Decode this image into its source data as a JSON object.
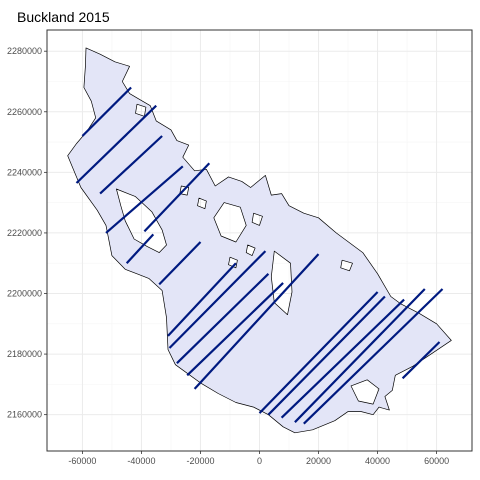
{
  "title": "Buckland 2015",
  "colors": {
    "panel_border": "#333333",
    "grid_major": "#ebebeb",
    "grid_minor": "#f5f5f5",
    "region_fill": "#e3e5f7",
    "region_stroke": "#000000",
    "transect": "#001a80",
    "tick_text": "#4d4d4d"
  },
  "map": {
    "x_range": [
      -72000,
      72000
    ],
    "y_range": [
      2148000,
      2287000
    ],
    "x_ticks": [
      -60000,
      -40000,
      -20000,
      0,
      20000,
      40000,
      60000
    ],
    "y_ticks": [
      2160000,
      2180000,
      2200000,
      2220000,
      2240000,
      2260000,
      2280000
    ],
    "x_tick_labels": [
      "-60000",
      "-40000",
      "-20000",
      "0",
      "20000",
      "40000",
      "60000"
    ],
    "y_tick_labels": [
      "2160000",
      "2180000",
      "2200000",
      "2220000",
      "2240000",
      "2260000",
      "2280000"
    ],
    "grid": true,
    "study_area": [
      [
        -58800,
        2281100
      ],
      [
        -54000,
        2279000
      ],
      [
        -49000,
        2276500
      ],
      [
        -44000,
        2275000
      ],
      [
        -46500,
        2270000
      ],
      [
        -44000,
        2266000
      ],
      [
        -40500,
        2264000
      ],
      [
        -37000,
        2262000
      ],
      [
        -35000,
        2257000
      ],
      [
        -30000,
        2254000
      ],
      [
        -28000,
        2250500
      ],
      [
        -24000,
        2249000
      ],
      [
        -26000,
        2245000
      ],
      [
        -22000,
        2240500
      ],
      [
        -18000,
        2241000
      ],
      [
        -15000,
        2235500
      ],
      [
        -10500,
        2238500
      ],
      [
        -6000,
        2237000
      ],
      [
        -3000,
        2235000
      ],
      [
        2000,
        2239000
      ],
      [
        4000,
        2232500
      ],
      [
        7500,
        2233000
      ],
      [
        10000,
        2229000
      ],
      [
        15000,
        2226500
      ],
      [
        20000,
        2225000
      ],
      [
        26000,
        2220000
      ],
      [
        35000,
        2213500
      ],
      [
        40000,
        2206500
      ],
      [
        44500,
        2199000
      ],
      [
        48000,
        2196500
      ],
      [
        54000,
        2193500
      ],
      [
        60000,
        2190000
      ],
      [
        65000,
        2184500
      ],
      [
        52000,
        2176000
      ],
      [
        46000,
        2173000
      ],
      [
        45000,
        2168000
      ],
      [
        42500,
        2166000
      ],
      [
        44000,
        2161500
      ],
      [
        40500,
        2162500
      ],
      [
        38500,
        2160000
      ],
      [
        34500,
        2161000
      ],
      [
        30000,
        2161000
      ],
      [
        25500,
        2158000
      ],
      [
        18000,
        2155000
      ],
      [
        12000,
        2154000
      ],
      [
        8000,
        2156000
      ],
      [
        3000,
        2160000
      ],
      [
        -2000,
        2162500
      ],
      [
        -8000,
        2164000
      ],
      [
        -14000,
        2167000
      ],
      [
        -20000,
        2170500
      ],
      [
        -28500,
        2176500
      ],
      [
        -31000,
        2181500
      ],
      [
        -31500,
        2192000
      ],
      [
        -33000,
        2201000
      ],
      [
        -37500,
        2205000
      ],
      [
        -41500,
        2206500
      ],
      [
        -45500,
        2208000
      ],
      [
        -50000,
        2212500
      ],
      [
        -52000,
        2222500
      ],
      [
        -55000,
        2227500
      ],
      [
        -60500,
        2235000
      ],
      [
        -65000,
        2245500
      ],
      [
        -62000,
        2249500
      ],
      [
        -58500,
        2253500
      ],
      [
        -55500,
        2258000
      ],
      [
        -57000,
        2263500
      ],
      [
        -59500,
        2268000
      ],
      [
        -59000,
        2275000
      ]
    ],
    "holes": [
      [
        [
          -48500,
          2234500
        ],
        [
          -42000,
          2232000
        ],
        [
          -36500,
          2227000
        ],
        [
          -33000,
          2221000
        ],
        [
          -31500,
          2216000
        ],
        [
          -34000,
          2213500
        ],
        [
          -38000,
          2215500
        ],
        [
          -42500,
          2218000
        ],
        [
          -45500,
          2224000
        ],
        [
          -47000,
          2229000
        ]
      ],
      [
        [
          -12000,
          2230000
        ],
        [
          -6500,
          2228500
        ],
        [
          -4500,
          2222500
        ],
        [
          -8000,
          2217000
        ],
        [
          -13000,
          2219000
        ],
        [
          -15500,
          2225000
        ]
      ],
      [
        [
          5000,
          2214000
        ],
        [
          10500,
          2210000
        ],
        [
          11000,
          2200500
        ],
        [
          9500,
          2193000
        ],
        [
          5000,
          2197000
        ],
        [
          4000,
          2205500
        ]
      ],
      [
        [
          31000,
          2169500
        ],
        [
          36500,
          2171500
        ],
        [
          40500,
          2168500
        ],
        [
          38500,
          2163500
        ],
        [
          33500,
          2164500
        ]
      ],
      [
        [
          -41500,
          2262500
        ],
        [
          -38500,
          2261500
        ],
        [
          -39000,
          2258500
        ],
        [
          -42000,
          2259500
        ]
      ],
      [
        [
          -20500,
          2231500
        ],
        [
          -18000,
          2230500
        ],
        [
          -18500,
          2228000
        ],
        [
          -21000,
          2229000
        ]
      ],
      [
        [
          -2000,
          2226500
        ],
        [
          1000,
          2225500
        ],
        [
          0,
          2222500
        ],
        [
          -2500,
          2223500
        ]
      ],
      [
        [
          -4000,
          2216000
        ],
        [
          -1500,
          2215000
        ],
        [
          -2500,
          2212500
        ],
        [
          -4500,
          2213500
        ]
      ],
      [
        [
          -26500,
          2235500
        ],
        [
          -24000,
          2235000
        ],
        [
          -24500,
          2232500
        ],
        [
          -27000,
          2233000
        ]
      ],
      [
        [
          28000,
          2211000
        ],
        [
          31500,
          2210000
        ],
        [
          30500,
          2207500
        ],
        [
          27500,
          2208500
        ]
      ],
      [
        [
          -10000,
          2212000
        ],
        [
          -7500,
          2211000
        ],
        [
          -8000,
          2208500
        ],
        [
          -10500,
          2209500
        ]
      ]
    ],
    "transects": [
      [
        [
          -60000,
          2252000
        ],
        [
          -43500,
          2268000
        ]
      ],
      [
        [
          -62000,
          2236500
        ],
        [
          -35000,
          2262000
        ]
      ],
      [
        [
          -54000,
          2233000
        ],
        [
          -33000,
          2252000
        ]
      ],
      [
        [
          -52000,
          2220000
        ],
        [
          -26000,
          2242000
        ]
      ],
      [
        [
          -39000,
          2220500
        ],
        [
          -17000,
          2243000
        ]
      ],
      [
        [
          -45000,
          2210000
        ],
        [
          -36000,
          2219500
        ]
      ],
      [
        [
          -34000,
          2203000
        ],
        [
          -20000,
          2217000
        ]
      ],
      [
        [
          -31000,
          2186000
        ],
        [
          -8000,
          2210000
        ]
      ],
      [
        [
          -30500,
          2182000
        ],
        [
          2000,
          2214000
        ]
      ],
      [
        [
          -28000,
          2177000
        ],
        [
          3000,
          2206500
        ]
      ],
      [
        [
          -24500,
          2173000
        ],
        [
          8000,
          2203500
        ]
      ],
      [
        [
          -22000,
          2168500
        ],
        [
          20000,
          2213000
        ]
      ],
      [
        [
          0,
          2160500
        ],
        [
          40000,
          2200500
        ]
      ],
      [
        [
          3000,
          2160000
        ],
        [
          42500,
          2199000
        ]
      ],
      [
        [
          7500,
          2159000
        ],
        [
          49000,
          2198000
        ]
      ],
      [
        [
          12000,
          2157500
        ],
        [
          56000,
          2201500
        ]
      ],
      [
        [
          15000,
          2157000
        ],
        [
          62000,
          2201500
        ]
      ],
      [
        [
          48500,
          2172000
        ],
        [
          61000,
          2184000
        ]
      ]
    ]
  }
}
